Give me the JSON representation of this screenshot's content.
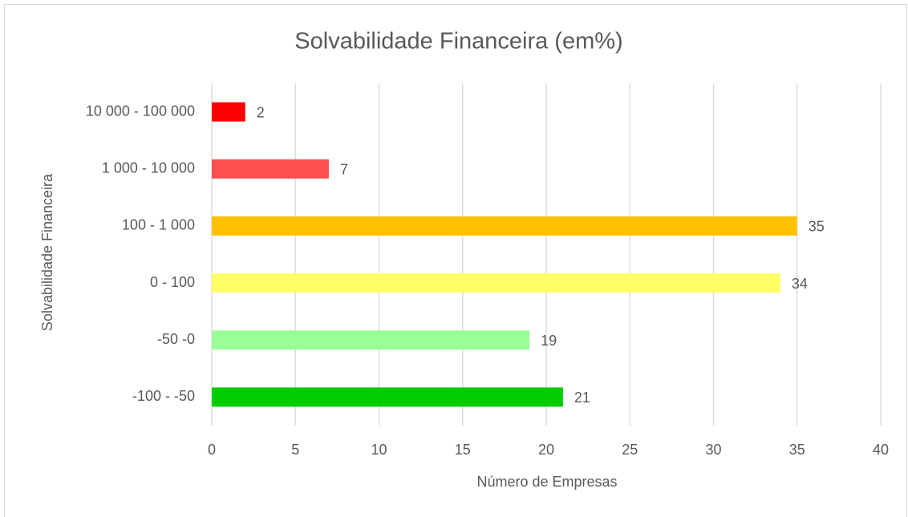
{
  "chart_data": {
    "type": "bar",
    "orientation": "horizontal",
    "title": "Solvabilidade Financeira (em%)",
    "x_label": "Número de Empresas",
    "y_label": "Solvabilidade Financeira",
    "categories": [
      "10 000 - 100 000",
      "1 000 - 10 000",
      "100 - 1 000",
      "0 - 100",
      "-50 -0",
      "-100 - -50"
    ],
    "values": [
      2,
      7,
      35,
      34,
      19,
      21
    ],
    "colors": [
      "#ff0000",
      "#ff5050",
      "#ffc000",
      "#ffff66",
      "#99ff99",
      "#00cc00"
    ],
    "xlim": [
      0,
      40
    ],
    "xticks": [
      0,
      5,
      10,
      15,
      20,
      25,
      30,
      35,
      40
    ],
    "grid": true
  }
}
